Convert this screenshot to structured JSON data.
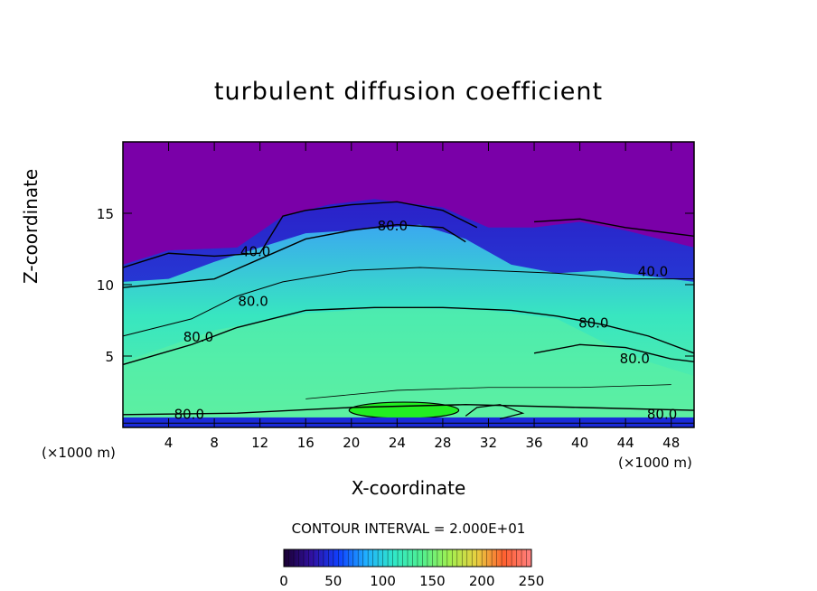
{
  "chart_data": {
    "type": "heatmap",
    "title": "turbulent diffusion coefficient",
    "xlabel": "X-coordinate",
    "ylabel": "Z-coordinate",
    "x_unit_label": "(×1000 m)",
    "xlim": [
      0,
      50
    ],
    "ylim": [
      0,
      20
    ],
    "x_ticks": [
      4,
      8,
      12,
      16,
      20,
      24,
      28,
      32,
      36,
      40,
      44,
      48
    ],
    "y_ticks": [
      5,
      10,
      15
    ],
    "contour_interval_text": "CONTOUR INTERVAL = 2.000E+01",
    "contour_labels": [
      {
        "text": "40.0",
        "x": 11.6,
        "y": 12.0
      },
      {
        "text": "80.0",
        "x": 23.6,
        "y": 13.8
      },
      {
        "text": "40.0",
        "x": 46.4,
        "y": 10.6
      },
      {
        "text": "80.0",
        "x": 11.4,
        "y": 8.5
      },
      {
        "text": "80.0",
        "x": 6.6,
        "y": 6.0
      },
      {
        "text": "80.0",
        "x": 41.2,
        "y": 7.0
      },
      {
        "text": "80.0",
        "x": 44.8,
        "y": 4.5
      },
      {
        "text": "80.0",
        "x": 5.8,
        "y": 0.6
      },
      {
        "text": "80.0",
        "x": 47.2,
        "y": 0.6
      }
    ],
    "colorbar": {
      "min": 0,
      "max": 250,
      "ticks": [
        0,
        50,
        100,
        150,
        200,
        250
      ],
      "colors": [
        "#1a0030",
        "#3010a0",
        "#1040ff",
        "#20b0ff",
        "#30e8c8",
        "#50f090",
        "#a0f050",
        "#e8d040",
        "#ff6030",
        "#ff8080"
      ]
    },
    "field_colors": {
      "upper": "#7a00a8",
      "transition": "#2a20c8",
      "band": "#3aa8f0",
      "core": "#38e6c0",
      "green": "#5ef0a0",
      "peak": "#22ee22",
      "blue_strip": "#1a2ad8"
    }
  }
}
